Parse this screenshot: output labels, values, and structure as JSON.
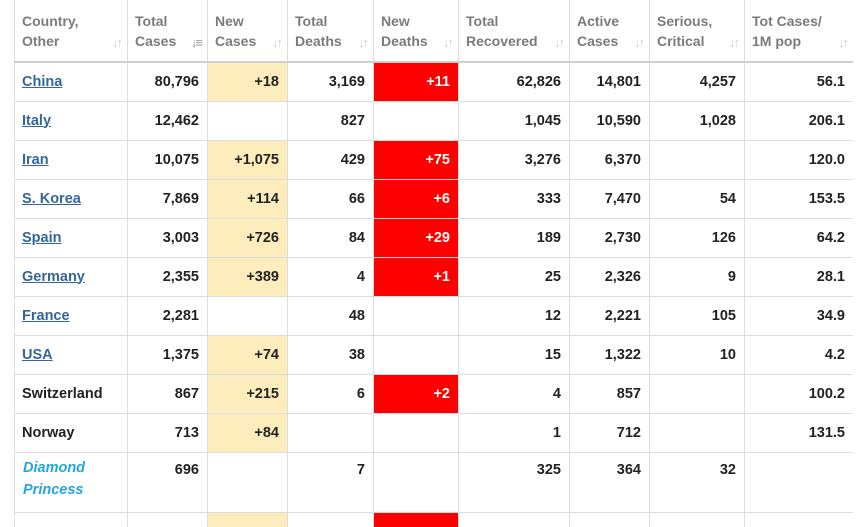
{
  "colors": {
    "new_cases_highlight": "#fdedbc",
    "new_deaths_highlight": "#ff0000",
    "link": "#336699",
    "ship_link": "#22a6e0",
    "header_text": "#7b7b7b"
  },
  "headers": [
    {
      "label": "Country,\nOther",
      "sort_icon": "sort-icon",
      "sorted": false
    },
    {
      "label": "Total\nCases",
      "sort_icon": "sort-desc-icon",
      "sorted": true
    },
    {
      "label": "New\nCases",
      "sort_icon": "sort-icon",
      "sorted": false
    },
    {
      "label": "Total\nDeaths",
      "sort_icon": "sort-icon",
      "sorted": false
    },
    {
      "label": "New\nDeaths",
      "sort_icon": "sort-icon",
      "sorted": false
    },
    {
      "label": "Total\nRecovered",
      "sort_icon": "sort-icon",
      "sorted": false
    },
    {
      "label": "Active\nCases",
      "sort_icon": "sort-icon",
      "sorted": false
    },
    {
      "label": "Serious,\nCritical",
      "sort_icon": "sort-icon",
      "sorted": false
    },
    {
      "label": "Tot Cases/\n1M pop",
      "sort_icon": "sort-icon",
      "sorted": false
    }
  ],
  "rows": [
    {
      "country": "China",
      "link": true,
      "total_cases": "80,796",
      "new_cases": "+18",
      "total_deaths": "3,169",
      "new_deaths": "+11",
      "total_recovered": "62,826",
      "active_cases": "14,801",
      "serious_critical": "4,257",
      "per_million": "56.1"
    },
    {
      "country": "Italy",
      "link": true,
      "total_cases": "12,462",
      "new_cases": "",
      "total_deaths": "827",
      "new_deaths": "",
      "total_recovered": "1,045",
      "active_cases": "10,590",
      "serious_critical": "1,028",
      "per_million": "206.1"
    },
    {
      "country": "Iran",
      "link": true,
      "total_cases": "10,075",
      "new_cases": "+1,075",
      "total_deaths": "429",
      "new_deaths": "+75",
      "total_recovered": "3,276",
      "active_cases": "6,370",
      "serious_critical": "",
      "per_million": "120.0"
    },
    {
      "country": "S. Korea",
      "link": true,
      "total_cases": "7,869",
      "new_cases": "+114",
      "total_deaths": "66",
      "new_deaths": "+6",
      "total_recovered": "333",
      "active_cases": "7,470",
      "serious_critical": "54",
      "per_million": "153.5"
    },
    {
      "country": "Spain",
      "link": true,
      "total_cases": "3,003",
      "new_cases": "+726",
      "total_deaths": "84",
      "new_deaths": "+29",
      "total_recovered": "189",
      "active_cases": "2,730",
      "serious_critical": "126",
      "per_million": "64.2"
    },
    {
      "country": "Germany",
      "link": true,
      "total_cases": "2,355",
      "new_cases": "+389",
      "total_deaths": "4",
      "new_deaths": "+1",
      "total_recovered": "25",
      "active_cases": "2,326",
      "serious_critical": "9",
      "per_million": "28.1"
    },
    {
      "country": "France",
      "link": true,
      "total_cases": "2,281",
      "new_cases": "",
      "total_deaths": "48",
      "new_deaths": "",
      "total_recovered": "12",
      "active_cases": "2,221",
      "serious_critical": "105",
      "per_million": "34.9"
    },
    {
      "country": "USA",
      "link": true,
      "total_cases": "1,375",
      "new_cases": "+74",
      "total_deaths": "38",
      "new_deaths": "",
      "total_recovered": "15",
      "active_cases": "1,322",
      "serious_critical": "10",
      "per_million": "4.2"
    },
    {
      "country": "Switzerland",
      "link": false,
      "total_cases": "867",
      "new_cases": "+215",
      "total_deaths": "6",
      "new_deaths": "+2",
      "total_recovered": "4",
      "active_cases": "857",
      "serious_critical": "",
      "per_million": "100.2"
    },
    {
      "country": "Norway",
      "link": false,
      "total_cases": "713",
      "new_cases": "+84",
      "total_deaths": "",
      "new_deaths": "",
      "total_recovered": "1",
      "active_cases": "712",
      "serious_critical": "",
      "per_million": "131.5"
    },
    {
      "country": "Diamond Princess",
      "link": true,
      "ship": true,
      "total_cases": "696",
      "new_cases": "",
      "total_deaths": "7",
      "new_deaths": "",
      "total_recovered": "325",
      "active_cases": "364",
      "serious_critical": "32",
      "per_million": ""
    },
    {
      "country": "",
      "link": false,
      "partial": true,
      "total_cases": "",
      "new_cases": "+",
      "total_deaths": "",
      "new_deaths": "+",
      "total_recovered": "",
      "active_cases": "",
      "serious_critical": "",
      "per_million": ""
    }
  ]
}
